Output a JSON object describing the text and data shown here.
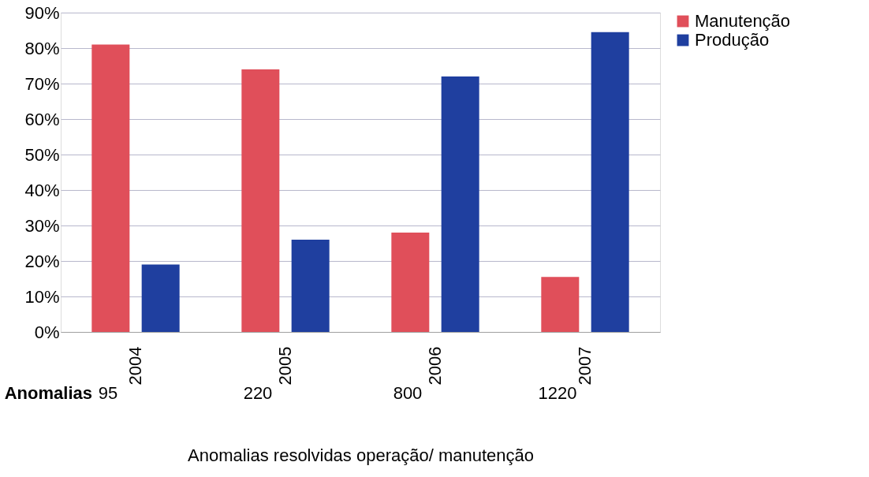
{
  "chart_data": {
    "type": "bar",
    "categories": [
      "2004",
      "2005",
      "2006",
      "2007"
    ],
    "series": [
      {
        "name": "Manutenção",
        "color": "#e04f5a",
        "values": [
          81,
          74,
          28,
          15.5
        ]
      },
      {
        "name": "Produção",
        "color": "#1f3f9f",
        "values": [
          19,
          26,
          72,
          84.5
        ]
      }
    ],
    "xlabel": "Anomalias resolvidas operação/ manutenção",
    "annotations": [
      "Anomalias",
      "95",
      "220",
      "800",
      "1220"
    ],
    "ylim": [
      0,
      90
    ],
    "yticks": [
      {
        "value": 0,
        "label": "0%"
      },
      {
        "value": 10,
        "label": "10%"
      },
      {
        "value": 20,
        "label": "20%"
      },
      {
        "value": 30,
        "label": "30%"
      },
      {
        "value": 40,
        "label": "40%"
      },
      {
        "value": 50,
        "label": "50%"
      },
      {
        "value": 60,
        "label": "60%"
      },
      {
        "value": 70,
        "label": "70%"
      },
      {
        "value": 80,
        "label": "80%"
      },
      {
        "value": 90,
        "label": "90%"
      }
    ],
    "grid": "y",
    "legend": "right"
  }
}
